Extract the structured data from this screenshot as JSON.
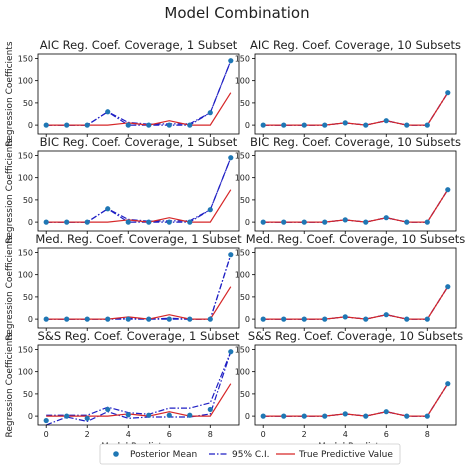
{
  "figure_title": "Model Combination",
  "legend": {
    "posterior_mean": "Posterior Mean",
    "ci": "95% C.I.",
    "true_value": "True Predictive Value"
  },
  "colors": {
    "posterior_mean": "#1f77b4",
    "ci": "#1f1fc4",
    "true_value": "#d62728",
    "axes": "#000000",
    "background": "#ffffff"
  },
  "chart_data": [
    {
      "type": "line",
      "title": "AIC Reg. Coef. Coverage, 1 Subset",
      "ylabel": "Regression Coefficients",
      "xlabel": "",
      "xlim": [
        -0.4,
        9.4
      ],
      "ylim": [
        -20,
        160
      ],
      "series": [
        {
          "name": "Posterior Mean",
          "x": [
            0,
            1,
            2,
            3,
            4,
            5,
            6,
            7,
            8,
            9
          ],
          "y": [
            0,
            0,
            0,
            30,
            0,
            0,
            0,
            0,
            28,
            145
          ]
        },
        {
          "name": "95% C.I.",
          "x": [
            0,
            1,
            2,
            3,
            4,
            5,
            6,
            7,
            8,
            9
          ],
          "y": [
            0,
            0,
            0,
            30,
            6,
            2,
            3,
            3,
            28,
            145
          ]
        },
        {
          "name": "95% C.I.",
          "x": [
            0,
            1,
            2,
            3,
            4,
            5,
            6,
            7,
            8,
            9
          ],
          "y": [
            0,
            0,
            0,
            30,
            0,
            0,
            0,
            0,
            28,
            145
          ]
        },
        {
          "name": "True Predictive Value",
          "x": [
            0,
            1,
            2,
            3,
            4,
            5,
            6,
            7,
            8,
            9
          ],
          "y": [
            0,
            0,
            0,
            0,
            5,
            0,
            10,
            0,
            0,
            73
          ]
        }
      ]
    },
    {
      "type": "line",
      "title": "AIC Reg. Coef. Coverage, 10 Subsets",
      "ylabel": "",
      "xlabel": "",
      "xlim": [
        -0.4,
        9.4
      ],
      "ylim": [
        -20,
        160
      ],
      "series": [
        {
          "name": "Posterior Mean",
          "x": [
            0,
            1,
            2,
            3,
            4,
            5,
            6,
            7,
            8,
            9
          ],
          "y": [
            0,
            0,
            0,
            0,
            5,
            0,
            10,
            0,
            0,
            73
          ]
        },
        {
          "name": "95% C.I.",
          "x": [
            0,
            1,
            2,
            3,
            4,
            5,
            6,
            7,
            8,
            9
          ],
          "y": [
            0,
            0,
            0,
            0,
            5,
            0,
            10,
            0,
            0,
            73
          ]
        },
        {
          "name": "95% C.I.",
          "x": [
            0,
            1,
            2,
            3,
            4,
            5,
            6,
            7,
            8,
            9
          ],
          "y": [
            0,
            0,
            0,
            0,
            5,
            0,
            10,
            0,
            0,
            73
          ]
        },
        {
          "name": "True Predictive Value",
          "x": [
            0,
            1,
            2,
            3,
            4,
            5,
            6,
            7,
            8,
            9
          ],
          "y": [
            0,
            0,
            0,
            0,
            5,
            0,
            10,
            0,
            0,
            73
          ]
        }
      ]
    },
    {
      "type": "line",
      "title": "BIC Reg. Coef. Coverage, 1 Subset",
      "ylabel": "Regression Coefficients",
      "xlabel": "",
      "xlim": [
        -0.4,
        9.4
      ],
      "ylim": [
        -20,
        160
      ],
      "series": [
        {
          "name": "Posterior Mean",
          "x": [
            0,
            1,
            2,
            3,
            4,
            5,
            6,
            7,
            8,
            9
          ],
          "y": [
            0,
            0,
            0,
            30,
            0,
            0,
            0,
            0,
            28,
            145
          ]
        },
        {
          "name": "95% C.I.",
          "x": [
            0,
            1,
            2,
            3,
            4,
            5,
            6,
            7,
            8,
            9
          ],
          "y": [
            0,
            0,
            0,
            30,
            6,
            2,
            3,
            3,
            28,
            145
          ]
        },
        {
          "name": "95% C.I.",
          "x": [
            0,
            1,
            2,
            3,
            4,
            5,
            6,
            7,
            8,
            9
          ],
          "y": [
            0,
            0,
            0,
            30,
            0,
            0,
            0,
            0,
            28,
            145
          ]
        },
        {
          "name": "True Predictive Value",
          "x": [
            0,
            1,
            2,
            3,
            4,
            5,
            6,
            7,
            8,
            9
          ],
          "y": [
            0,
            0,
            0,
            0,
            5,
            0,
            10,
            0,
            0,
            73
          ]
        }
      ]
    },
    {
      "type": "line",
      "title": "BIC Reg. Coef. Coverage, 10 Subsets",
      "ylabel": "",
      "xlabel": "",
      "xlim": [
        -0.4,
        9.4
      ],
      "ylim": [
        -20,
        160
      ],
      "series": [
        {
          "name": "Posterior Mean",
          "x": [
            0,
            1,
            2,
            3,
            4,
            5,
            6,
            7,
            8,
            9
          ],
          "y": [
            0,
            0,
            0,
            0,
            5,
            0,
            10,
            0,
            0,
            73
          ]
        },
        {
          "name": "95% C.I.",
          "x": [
            0,
            1,
            2,
            3,
            4,
            5,
            6,
            7,
            8,
            9
          ],
          "y": [
            0,
            0,
            0,
            0,
            5,
            0,
            10,
            0,
            0,
            73
          ]
        },
        {
          "name": "95% C.I.",
          "x": [
            0,
            1,
            2,
            3,
            4,
            5,
            6,
            7,
            8,
            9
          ],
          "y": [
            0,
            0,
            0,
            0,
            5,
            0,
            10,
            0,
            0,
            73
          ]
        },
        {
          "name": "True Predictive Value",
          "x": [
            0,
            1,
            2,
            3,
            4,
            5,
            6,
            7,
            8,
            9
          ],
          "y": [
            0,
            0,
            0,
            0,
            5,
            0,
            10,
            0,
            0,
            73
          ]
        }
      ]
    },
    {
      "type": "line",
      "title": "Med. Reg. Coef. Coverage, 1 Subset",
      "ylabel": "Regression Coefficients",
      "xlabel": "",
      "xlim": [
        -0.4,
        9.4
      ],
      "ylim": [
        -20,
        160
      ],
      "series": [
        {
          "name": "Posterior Mean",
          "x": [
            0,
            1,
            2,
            3,
            4,
            5,
            6,
            7,
            8,
            9
          ],
          "y": [
            0,
            0,
            0,
            0,
            0,
            0,
            0,
            0,
            0,
            145
          ]
        },
        {
          "name": "95% C.I.",
          "x": [
            0,
            1,
            2,
            3,
            4,
            5,
            6,
            7,
            8,
            9
          ],
          "y": [
            0,
            0,
            0,
            0,
            2,
            0,
            2,
            0,
            0,
            145
          ]
        },
        {
          "name": "95% C.I.",
          "x": [
            0,
            1,
            2,
            3,
            4,
            5,
            6,
            7,
            8,
            9
          ],
          "y": [
            0,
            0,
            0,
            0,
            0,
            0,
            0,
            0,
            0,
            145
          ]
        },
        {
          "name": "True Predictive Value",
          "x": [
            0,
            1,
            2,
            3,
            4,
            5,
            6,
            7,
            8,
            9
          ],
          "y": [
            0,
            0,
            0,
            0,
            5,
            0,
            10,
            0,
            0,
            73
          ]
        }
      ]
    },
    {
      "type": "line",
      "title": "Med. Reg. Coef. Coverage, 10 Subsets",
      "ylabel": "",
      "xlabel": "",
      "xlim": [
        -0.4,
        9.4
      ],
      "ylim": [
        -20,
        160
      ],
      "series": [
        {
          "name": "Posterior Mean",
          "x": [
            0,
            1,
            2,
            3,
            4,
            5,
            6,
            7,
            8,
            9
          ],
          "y": [
            0,
            0,
            0,
            0,
            5,
            0,
            10,
            0,
            0,
            73
          ]
        },
        {
          "name": "95% C.I.",
          "x": [
            0,
            1,
            2,
            3,
            4,
            5,
            6,
            7,
            8,
            9
          ],
          "y": [
            0,
            0,
            0,
            0,
            5,
            0,
            10,
            0,
            0,
            73
          ]
        },
        {
          "name": "95% C.I.",
          "x": [
            0,
            1,
            2,
            3,
            4,
            5,
            6,
            7,
            8,
            9
          ],
          "y": [
            0,
            0,
            0,
            0,
            5,
            0,
            10,
            0,
            0,
            73
          ]
        },
        {
          "name": "True Predictive Value",
          "x": [
            0,
            1,
            2,
            3,
            4,
            5,
            6,
            7,
            8,
            9
          ],
          "y": [
            0,
            0,
            0,
            0,
            5,
            0,
            10,
            0,
            0,
            73
          ]
        }
      ]
    },
    {
      "type": "line",
      "title": "S&S Reg. Coef. Coverage, 1 Subset",
      "ylabel": "Regression Coefficients",
      "xlabel": "Model Predictors",
      "xlim": [
        -0.4,
        9.4
      ],
      "ylim": [
        -20,
        160
      ],
      "series": [
        {
          "name": "Posterior Mean",
          "x": [
            0,
            1,
            2,
            3,
            4,
            5,
            6,
            7,
            8,
            9
          ],
          "y": [
            -10,
            0,
            -5,
            15,
            3,
            2,
            2,
            2,
            15,
            145
          ]
        },
        {
          "name": "95% C.I.",
          "x": [
            0,
            1,
            2,
            3,
            4,
            5,
            6,
            7,
            8,
            9
          ],
          "y": [
            2,
            2,
            2,
            20,
            8,
            4,
            18,
            18,
            30,
            145
          ]
        },
        {
          "name": "95% C.I.",
          "x": [
            0,
            1,
            2,
            3,
            4,
            5,
            6,
            7,
            8,
            9
          ],
          "y": [
            -20,
            -2,
            -12,
            10,
            -5,
            -2,
            -2,
            -2,
            5,
            145
          ]
        },
        {
          "name": "True Predictive Value",
          "x": [
            0,
            1,
            2,
            3,
            4,
            5,
            6,
            7,
            8,
            9
          ],
          "y": [
            0,
            0,
            0,
            0,
            5,
            0,
            10,
            0,
            0,
            73
          ]
        }
      ]
    },
    {
      "type": "line",
      "title": "S&S Reg. Coef. Coverage, 10 Subsets",
      "ylabel": "",
      "xlabel": "Model Predictors",
      "xlim": [
        -0.4,
        9.4
      ],
      "ylim": [
        -20,
        160
      ],
      "series": [
        {
          "name": "Posterior Mean",
          "x": [
            0,
            1,
            2,
            3,
            4,
            5,
            6,
            7,
            8,
            9
          ],
          "y": [
            0,
            0,
            0,
            0,
            5,
            0,
            10,
            0,
            0,
            73
          ]
        },
        {
          "name": "95% C.I.",
          "x": [
            0,
            1,
            2,
            3,
            4,
            5,
            6,
            7,
            8,
            9
          ],
          "y": [
            0,
            0,
            0,
            0,
            5,
            0,
            10,
            0,
            0,
            73
          ]
        },
        {
          "name": "95% C.I.",
          "x": [
            0,
            1,
            2,
            3,
            4,
            5,
            6,
            7,
            8,
            9
          ],
          "y": [
            0,
            0,
            0,
            0,
            5,
            0,
            10,
            0,
            0,
            73
          ]
        },
        {
          "name": "True Predictive Value",
          "x": [
            0,
            1,
            2,
            3,
            4,
            5,
            6,
            7,
            8,
            9
          ],
          "y": [
            0,
            0,
            0,
            0,
            5,
            0,
            10,
            0,
            0,
            73
          ]
        }
      ]
    }
  ],
  "y_ticks": [
    0,
    50,
    100,
    150
  ],
  "x_ticks": [
    0,
    2,
    4,
    6,
    8
  ]
}
